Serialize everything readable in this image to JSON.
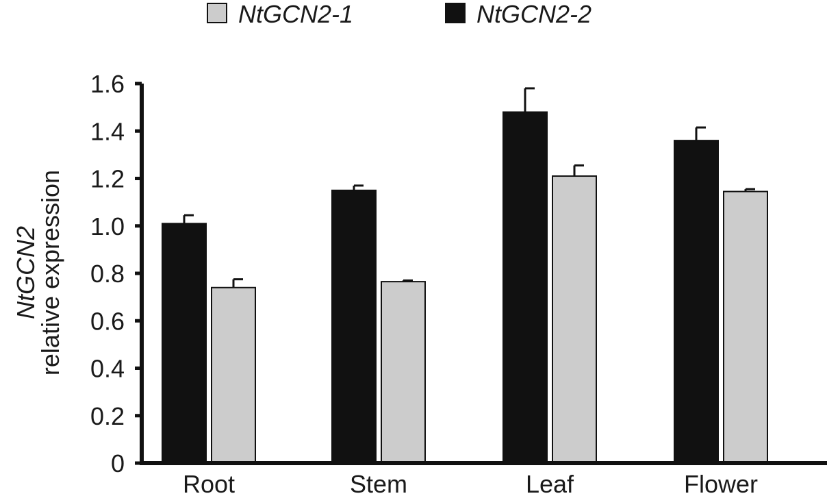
{
  "chart_data": {
    "type": "bar",
    "title": "",
    "xlabel": "",
    "ylabel_line1": "NtGCN2",
    "ylabel_line2": "relative expression",
    "categories": [
      "Root",
      "Stem",
      "Leaf",
      "Flower"
    ],
    "ylim": [
      0,
      1.6
    ],
    "yticks": [
      0,
      0.2,
      0.4,
      0.6,
      0.8,
      1.0,
      1.2,
      1.4,
      1.6
    ],
    "ytick_labels": [
      "0",
      "0.2",
      "0.4",
      "0.6",
      "0.8",
      "1.0",
      "1.2",
      "1.4",
      "1.6"
    ],
    "grid": false,
    "legend_position": "top",
    "series": [
      {
        "name": "NtGCN2-2",
        "color": "#111111",
        "values": [
          1.01,
          1.15,
          1.48,
          1.36
        ],
        "errors": [
          0.035,
          0.02,
          0.1,
          0.055
        ]
      },
      {
        "name": "NtGCN2-1",
        "color": "#cccccc",
        "values": [
          0.74,
          0.765,
          1.21,
          1.145
        ],
        "errors": [
          0.035,
          0.005,
          0.045,
          0.01
        ]
      }
    ],
    "legend": [
      {
        "name": "NtGCN2-1",
        "color": "#cccccc"
      },
      {
        "name": "NtGCN2-2",
        "color": "#111111"
      }
    ]
  }
}
